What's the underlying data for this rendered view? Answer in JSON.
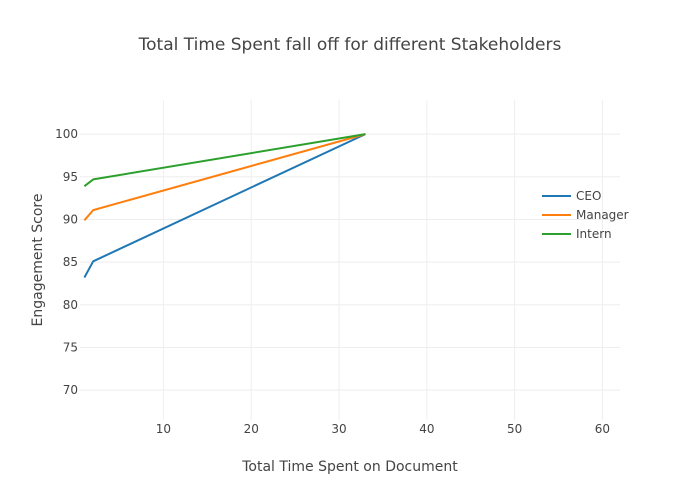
{
  "chart_data": {
    "type": "line",
    "title": "Total Time Spent fall off for different Stakeholders",
    "xlabel": "Total Time Spent on Document",
    "ylabel": "Engagement Score",
    "xlim": [
      0.5,
      62
    ],
    "ylim": [
      66.5,
      104
    ],
    "xticks": [
      10,
      20,
      30,
      40,
      50,
      60
    ],
    "yticks": [
      70,
      75,
      80,
      85,
      90,
      95,
      100
    ],
    "grid": true,
    "legend_position": "right",
    "series": [
      {
        "name": "CEO",
        "color": "#1f77b4",
        "x": [
          1,
          2,
          33
        ],
        "y": [
          83.2,
          85.1,
          100
        ]
      },
      {
        "name": "Manager",
        "color": "#ff7f0e",
        "x": [
          1,
          2,
          33
        ],
        "y": [
          89.9,
          91.1,
          100
        ]
      },
      {
        "name": "Intern",
        "color": "#2ca02c",
        "x": [
          1,
          2,
          33
        ],
        "y": [
          93.9,
          94.7,
          100
        ]
      }
    ]
  }
}
